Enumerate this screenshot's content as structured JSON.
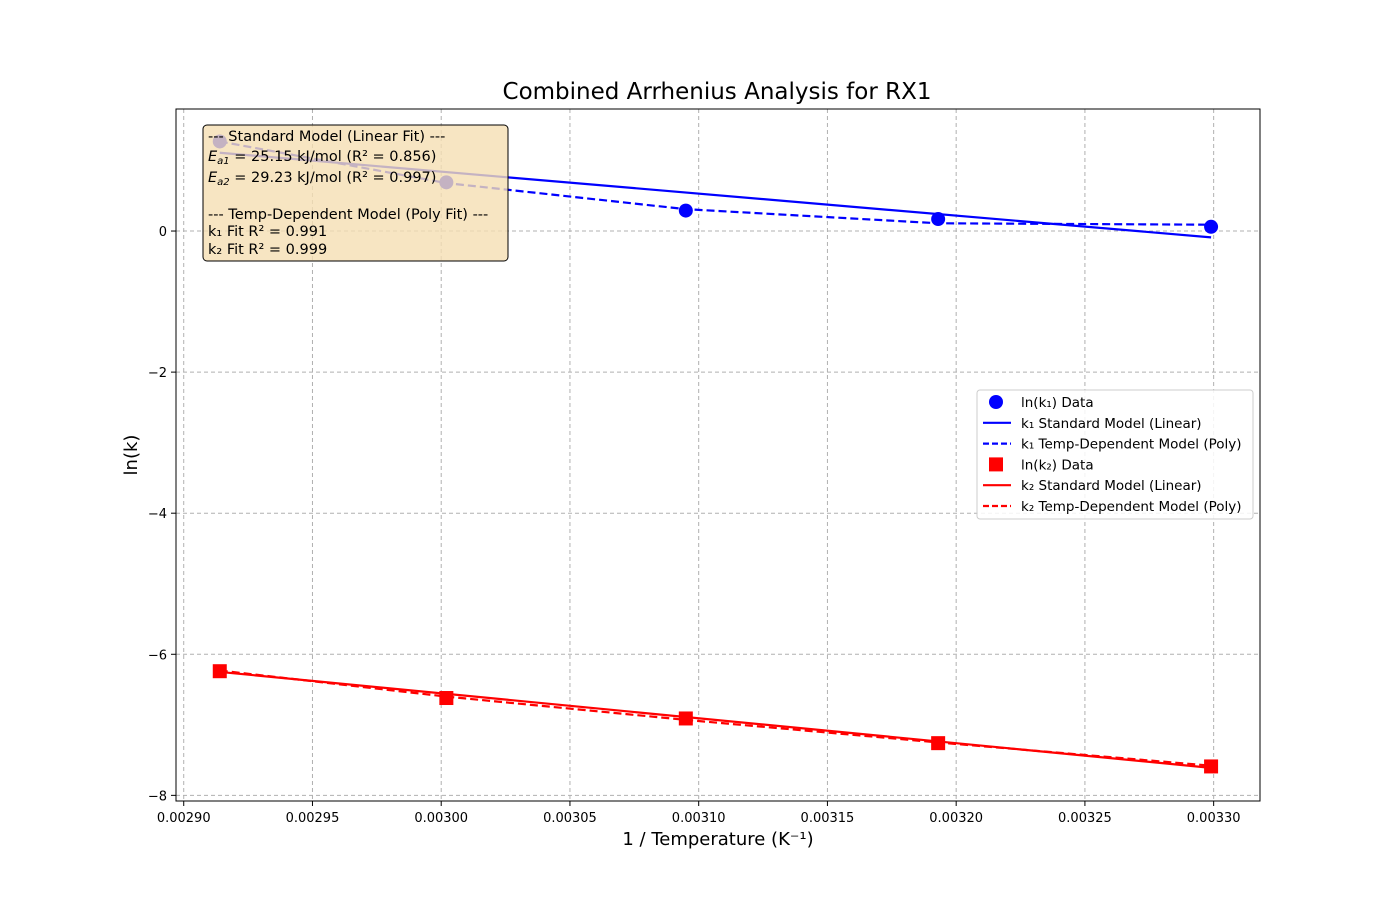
{
  "chart_data": {
    "type": "scatter",
    "title": "Combined Arrhenius Analysis for RX1",
    "xlabel": "1 / Temperature (K⁻¹)",
    "ylabel": "ln(k)",
    "xlim": [
      0.002897,
      0.003318
    ],
    "ylim": [
      -8.08,
      1.73
    ],
    "xticks": [
      0.0029,
      0.00295,
      0.003,
      0.00305,
      0.0031,
      0.00315,
      0.0032,
      0.00325,
      0.0033
    ],
    "xtick_labels": [
      "0.00290",
      "0.00295",
      "0.00300",
      "0.00305",
      "0.00310",
      "0.00315",
      "0.00320",
      "0.00325",
      "0.00330"
    ],
    "yticks": [
      0,
      -2,
      -4,
      -6,
      -8
    ],
    "ytick_labels": [
      "0",
      "−2",
      "−4",
      "−6",
      "−8"
    ],
    "grid": true,
    "legend_position": "center-right",
    "series": [
      {
        "name": "ln(k₁) Data",
        "kind": "scatter",
        "marker": "circle",
        "color": "#0000ff",
        "x": [
          0.002914,
          0.003002,
          0.003095,
          0.003193,
          0.003299
        ],
        "y": [
          1.27,
          0.69,
          0.29,
          0.17,
          0.06
        ]
      },
      {
        "name": "k₁ Standard Model (Linear)",
        "kind": "line",
        "dash": "solid",
        "color": "#0000ff",
        "x": [
          0.002914,
          0.003299
        ],
        "y": [
          1.11,
          -0.09
        ]
      },
      {
        "name": "k₁ Temp-Dependent Model (Poly)",
        "kind": "line",
        "dash": "dashed",
        "color": "#0000ff",
        "x": [
          0.002914,
          0.003002,
          0.003095,
          0.003193,
          0.003299
        ],
        "y": [
          1.27,
          0.68,
          0.31,
          0.11,
          0.09
        ]
      },
      {
        "name": "ln(k₂) Data",
        "kind": "scatter",
        "marker": "square",
        "color": "#ff0000",
        "x": [
          0.002914,
          0.003002,
          0.003095,
          0.003193,
          0.003299
        ],
        "y": [
          -6.24,
          -6.62,
          -6.91,
          -7.26,
          -7.59
        ]
      },
      {
        "name": "k₂ Standard Model (Linear)",
        "kind": "line",
        "dash": "solid",
        "color": "#ff0000",
        "x": [
          0.002914,
          0.003299
        ],
        "y": [
          -6.25,
          -7.61
        ]
      },
      {
        "name": "k₂ Temp-Dependent Model (Poly)",
        "kind": "line",
        "dash": "dashed",
        "color": "#ff0000",
        "x": [
          0.002914,
          0.003002,
          0.003095,
          0.003193,
          0.003299
        ],
        "y": [
          -6.23,
          -6.6,
          -6.93,
          -7.25,
          -7.58
        ]
      }
    ],
    "annotation": {
      "lines": [
        "--- Standard Model (Linear Fit) ---",
        " = 25.15 kJ/mol (R² = 0.856)",
        " = 29.23 kJ/mol (R² = 0.997)",
        "--- Temp-Dependent Model (Poly Fit) ---",
        "k₁ Fit R² = 0.991",
        "k₂ Fit R² = 0.999"
      ],
      "ea1_symbol": "E",
      "ea1_sub": "a1",
      "ea2_symbol": "E",
      "ea2_sub": "a2",
      "box_color": "#f5deb3"
    }
  }
}
